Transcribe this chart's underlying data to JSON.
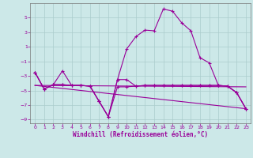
{
  "xlabel": "Windchill (Refroidissement éolien,°C)",
  "bg_color": "#cce8e8",
  "grid_color": "#aacccc",
  "line_color": "#990099",
  "xlim": [
    -0.5,
    23.5
  ],
  "ylim": [
    -9.5,
    7.0
  ],
  "xticks": [
    0,
    1,
    2,
    3,
    4,
    5,
    6,
    7,
    8,
    9,
    10,
    11,
    12,
    13,
    14,
    15,
    16,
    17,
    18,
    19,
    20,
    21,
    22,
    23
  ],
  "yticks": [
    -9,
    -7,
    -5,
    -3,
    -1,
    1,
    3,
    5
  ],
  "series_arc": {
    "x": [
      0,
      1,
      2,
      3,
      4,
      5,
      6,
      7,
      8,
      9,
      10,
      11,
      12,
      13,
      14,
      15,
      16,
      17,
      18,
      19,
      20,
      21,
      22,
      23
    ],
    "y": [
      -2.5,
      -4.8,
      -4.2,
      -4.2,
      -4.3,
      -4.3,
      -4.4,
      -6.5,
      -8.6,
      -3.5,
      0.7,
      2.4,
      3.3,
      3.2,
      6.2,
      5.9,
      4.3,
      3.2,
      -0.5,
      -1.2,
      -4.3,
      -4.4,
      -5.3,
      -7.5
    ]
  },
  "series_v": {
    "x": [
      0,
      1,
      2,
      3,
      4,
      5,
      6,
      7,
      8,
      9,
      10,
      11,
      12,
      13,
      14,
      15,
      16,
      17,
      18,
      19,
      20,
      21,
      22,
      23
    ],
    "y": [
      -2.5,
      -4.8,
      -4.2,
      -2.3,
      -4.3,
      -4.3,
      -4.4,
      -6.5,
      -8.6,
      -3.5,
      -3.5,
      -4.4,
      -4.3,
      -4.3,
      -4.3,
      -4.3,
      -4.3,
      -4.3,
      -4.3,
      -4.3,
      -4.3,
      -4.4,
      -5.3,
      -7.5
    ]
  },
  "series_flat": {
    "x": [
      0,
      1,
      2,
      3,
      4,
      5,
      6,
      7,
      8,
      9,
      10,
      11,
      12,
      13,
      14,
      15,
      16,
      17,
      18,
      19,
      20,
      21,
      22,
      23
    ],
    "y": [
      -2.5,
      -4.8,
      -4.2,
      -4.2,
      -4.3,
      -4.3,
      -4.4,
      -6.5,
      -8.6,
      -4.5,
      -4.5,
      -4.4,
      -4.3,
      -4.3,
      -4.3,
      -4.3,
      -4.3,
      -4.3,
      -4.3,
      -4.3,
      -4.3,
      -4.4,
      -5.3,
      -7.5
    ]
  },
  "line_decline": {
    "x": [
      0,
      23
    ],
    "y": [
      -4.3,
      -7.5
    ]
  },
  "line_flat": {
    "x": [
      0,
      23
    ],
    "y": [
      -4.3,
      -4.5
    ]
  }
}
